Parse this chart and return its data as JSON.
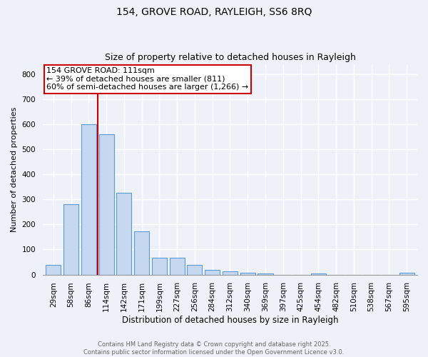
{
  "title_line1": "154, GROVE ROAD, RAYLEIGH, SS6 8RQ",
  "title_line2": "Size of property relative to detached houses in Rayleigh",
  "xlabel": "Distribution of detached houses by size in Rayleigh",
  "ylabel": "Number of detached properties",
  "categories": [
    "29sqm",
    "58sqm",
    "86sqm",
    "114sqm",
    "142sqm",
    "171sqm",
    "199sqm",
    "227sqm",
    "256sqm",
    "284sqm",
    "312sqm",
    "340sqm",
    "369sqm",
    "397sqm",
    "425sqm",
    "454sqm",
    "482sqm",
    "510sqm",
    "538sqm",
    "567sqm",
    "595sqm"
  ],
  "values": [
    38,
    282,
    601,
    560,
    327,
    172,
    68,
    67,
    38,
    20,
    13,
    8,
    4,
    0,
    0,
    5,
    0,
    0,
    0,
    0,
    7
  ],
  "bar_color": "#c5d8f0",
  "bar_edge_color": "#5b9bd5",
  "background_color": "#eef2f8",
  "grid_color": "#ffffff",
  "annotation_text_line1": "154 GROVE ROAD: 111sqm",
  "annotation_text_line2": "← 39% of detached houses are smaller (811)",
  "annotation_text_line3": "60% of semi-detached houses are larger (1,266) →",
  "annotation_box_facecolor": "#ffffff",
  "annotation_box_edgecolor": "#cc0000",
  "vline_color": "#cc0000",
  "vline_x_index": 2.5,
  "footer_line1": "Contains HM Land Registry data © Crown copyright and database right 2025.",
  "footer_line2": "Contains public sector information licensed under the Open Government Licence v3.0.",
  "ylim": [
    0,
    840
  ],
  "yticks": [
    0,
    100,
    200,
    300,
    400,
    500,
    600,
    700,
    800
  ],
  "title_fontsize": 10,
  "subtitle_fontsize": 9,
  "xlabel_fontsize": 8.5,
  "ylabel_fontsize": 8,
  "tick_fontsize": 7.5,
  "footer_fontsize": 6,
  "annotation_fontsize": 8
}
